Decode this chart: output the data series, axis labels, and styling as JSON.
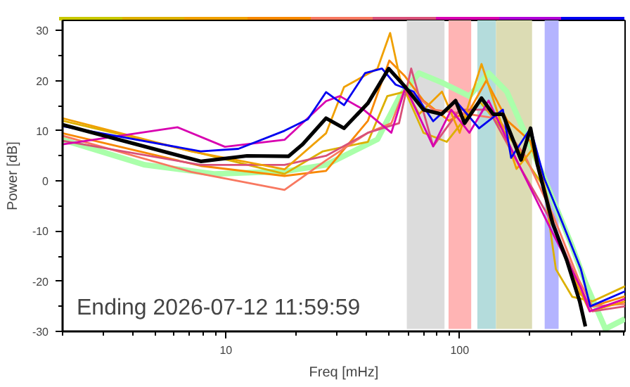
{
  "chart_data": {
    "type": "line",
    "xlabel": "Freq [mHz]",
    "ylabel": "Power [dB]",
    "log": "x",
    "xlim": [
      2,
      510
    ],
    "ylim": [
      -30,
      32
    ],
    "xticks": [
      {
        "value": 2,
        "label": null
      },
      {
        "value": 3,
        "label": null
      },
      {
        "value": 4,
        "label": null
      },
      {
        "value": 5,
        "label": null
      },
      {
        "value": 6,
        "label": null
      },
      {
        "value": 7,
        "label": null
      },
      {
        "value": 8,
        "label": null
      },
      {
        "value": 9,
        "label": null
      },
      10,
      {
        "value": 20,
        "label": null
      },
      {
        "value": 30,
        "label": null
      },
      {
        "value": 40,
        "label": null
      },
      {
        "value": 50,
        "label": null
      },
      {
        "value": 60,
        "label": null
      },
      {
        "value": 70,
        "label": null
      },
      {
        "value": 80,
        "label": null
      },
      {
        "value": 90,
        "label": null
      },
      100,
      {
        "value": 200,
        "label": null
      },
      {
        "value": 300,
        "label": null
      },
      {
        "value": 400,
        "label": null
      },
      {
        "value": 500,
        "label": null
      }
    ],
    "yticks": [
      -30,
      {
        "value": -25,
        "label": null
      },
      -20,
      {
        "value": -15,
        "label": null
      },
      -10,
      {
        "value": -5,
        "label": null
      },
      0,
      {
        "value": 5,
        "label": null
      },
      10,
      {
        "value": 15,
        "label": null
      },
      20,
      {
        "value": 25,
        "label": null
      },
      30
    ],
    "grid": false,
    "marker": "none",
    "line_style": "solid",
    "annotations": [
      "Ending 2026-07-12 11:59:59"
    ],
    "bands": [
      {
        "axis": "x",
        "from": 59.4,
        "to": 86.1,
        "color": "#dcdcdc"
      },
      {
        "axis": "x",
        "from": 89.6,
        "to": 112,
        "color": "#ffb4b4"
      },
      {
        "axis": "x",
        "from": 119,
        "to": 143,
        "color": "#b4dcdc"
      },
      {
        "axis": "x",
        "from": 143,
        "to": 204,
        "color": "#dcdcb4"
      },
      {
        "axis": "x",
        "from": 231,
        "to": 265,
        "color": "#b4b4ff"
      }
    ],
    "series": [
      {
        "color": "#aaffaa",
        "x": [
          2,
          4.5,
          8.9,
          17.8,
          26.8,
          44.5,
          55.5,
          67,
          84,
          110,
          133,
          159,
          190,
          230,
          303,
          346,
          420,
          510
        ],
        "values": [
          8.2,
          3.2,
          1.4,
          1.9,
          3.2,
          8.3,
          16.9,
          21.5,
          19.6,
          16.9,
          21.5,
          17.8,
          9.6,
          0.5,
          -13.1,
          -20.4,
          -29.5,
          -27.5
        ]
      },
      {
        "color": "#dcb000",
        "x": [
          2,
          7.8,
          17.8,
          26,
          40.5,
          49,
          58.6,
          70,
          88,
          121,
          175,
          230,
          258,
          303,
          370,
          510
        ],
        "values": [
          12,
          5.5,
          1.4,
          5.9,
          7.8,
          16.9,
          17.8,
          9.6,
          7.8,
          16,
          6.9,
          -1.3,
          -17.6,
          -23.1,
          -24,
          -21
        ]
      },
      {
        "color": "#f88800",
        "x": [
          2,
          7.8,
          17.8,
          26.8,
          40.5,
          50,
          58,
          70,
          90,
          110,
          130,
          160,
          200,
          250,
          320,
          370,
          510
        ],
        "values": [
          9.5,
          3,
          1,
          2,
          12,
          24,
          21,
          16,
          12,
          14,
          20,
          12,
          8,
          -8,
          -22,
          -25,
          -23
        ]
      },
      {
        "color": "#f87860",
        "x": [
          2,
          7.1,
          17.8,
          26.8,
          40.5,
          51,
          58.6,
          77,
          110,
          146,
          190,
          250,
          322,
          370,
          510
        ],
        "values": [
          9,
          1.8,
          -1.8,
          4.1,
          9.6,
          11.5,
          18.7,
          14.2,
          13.3,
          12.4,
          5.1,
          -6.7,
          -19.5,
          -25,
          -24.5
        ]
      },
      {
        "color": "#d85078",
        "x": [
          2,
          7.8,
          17.8,
          26.8,
          40.5,
          55,
          62,
          77,
          100,
          133,
          183,
          250,
          322,
          370,
          510
        ],
        "values": [
          8,
          3.2,
          3.2,
          5,
          9.6,
          11.5,
          22.4,
          6.9,
          14.2,
          14.2,
          2.4,
          -8.5,
          -20.4,
          -26,
          -25
        ]
      },
      {
        "color": "#f0a000",
        "x": [
          2,
          7.1,
          17.8,
          26.8,
          32,
          44.5,
          50.4,
          55.5,
          67,
          84,
          100,
          124,
          146,
          175,
          210,
          258,
          322,
          360,
          510
        ],
        "values": [
          12.5,
          5.9,
          2.3,
          9.5,
          18.7,
          22.4,
          29.5,
          20.5,
          13.3,
          17.8,
          9.6,
          23.3,
          13.3,
          2.4,
          6.9,
          -10.4,
          -21.3,
          -26,
          -24
        ]
      },
      {
        "color": "#d800b0",
        "x": [
          2,
          6.2,
          9.9,
          17.8,
          26.8,
          30.7,
          38.8,
          51,
          58.6,
          77,
          92,
          110,
          133,
          175,
          250,
          330,
          360,
          510
        ],
        "values": [
          7.3,
          10.7,
          6.8,
          8.2,
          15.9,
          16.9,
          14.2,
          9.6,
          18.7,
          6.9,
          14.2,
          9.6,
          16,
          4.2,
          -10.4,
          -21.3,
          -26,
          -23.5
        ]
      },
      {
        "color": "#0000f0",
        "x": [
          2,
          7.8,
          11.3,
          17.8,
          22.4,
          26.8,
          32,
          39.4,
          46.5,
          53.2,
          63.5,
          77,
          96,
          121,
          153,
          166,
          201,
          230,
          276,
          330,
          362,
          510
        ],
        "values": [
          10.9,
          5.9,
          6.4,
          10,
          12.3,
          17.7,
          15.1,
          21.5,
          22.4,
          19.2,
          17.8,
          11.9,
          16,
          10.5,
          14.2,
          4.6,
          10.5,
          0.5,
          -8.5,
          -17.6,
          -25,
          -22
        ]
      },
      {
        "color": "#000000",
        "x": [
          2,
          7.8,
          12.3,
          18.5,
          21.3,
          26.8,
          32,
          40.5,
          49.7,
          58.6,
          70,
          83.6,
          96,
          105,
          124,
          139,
          153,
          183,
          201,
          215,
          250,
          287,
          326,
          345
        ],
        "values": [
          11.2,
          3.9,
          5,
          4.9,
          7.3,
          12.5,
          10.5,
          15.5,
          22.4,
          18.7,
          14.2,
          13.3,
          16,
          11.5,
          16.5,
          13.3,
          13.3,
          4.2,
          10.5,
          3.3,
          -8.5,
          -15.8,
          -24,
          -29
        ]
      }
    ]
  }
}
